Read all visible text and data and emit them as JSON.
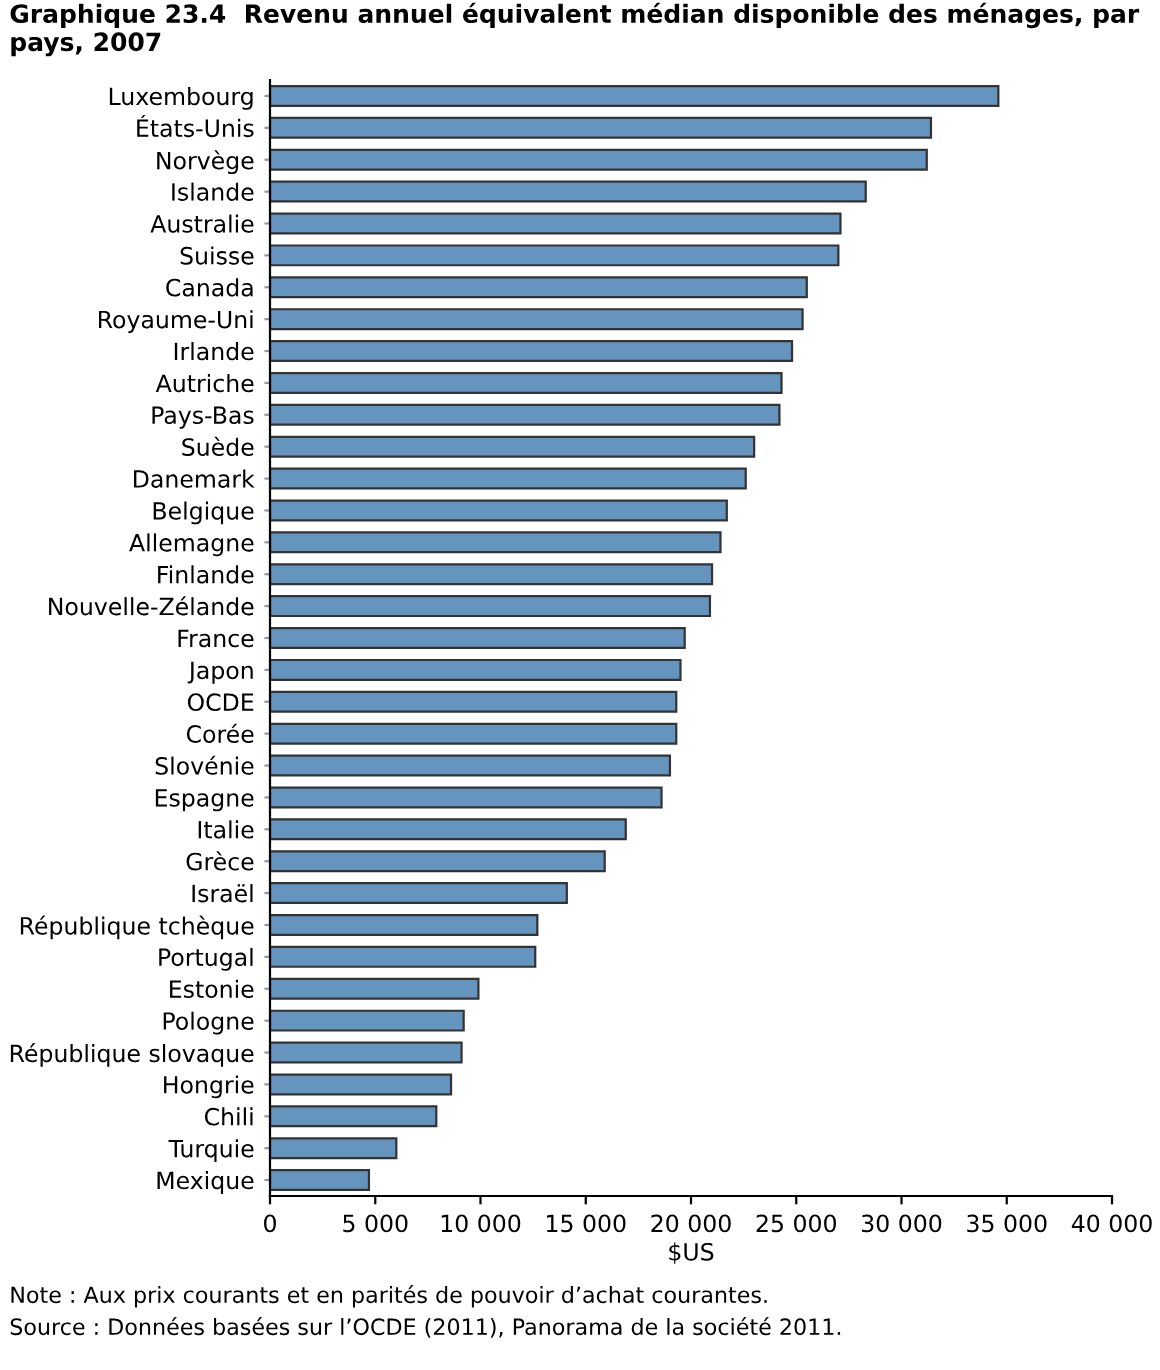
{
  "chart_data": {
    "type": "bar",
    "orientation": "horizontal",
    "title": "Graphique 23.4  Revenu annuel équivalent médian disponible des ménages, par pays, 2007",
    "xlabel": "$US",
    "categories": [
      "Luxembourg",
      "États-Unis",
      "Norvège",
      "Islande",
      "Australie",
      "Suisse",
      "Canada",
      "Royaume-Uni",
      "Irlande",
      "Autriche",
      "Pays-Bas",
      "Suède",
      "Danemark",
      "Belgique",
      "Allemagne",
      "Finlande",
      "Nouvelle-Zélande",
      "France",
      "Japon",
      "OCDE",
      "Corée",
      "Slovénie",
      "Espagne",
      "Italie",
      "Grèce",
      "Israël",
      "République tchèque",
      "Portugal",
      "Estonie",
      "Pologne",
      "République slovaque",
      "Hongrie",
      "Chili",
      "Turquie",
      "Mexique"
    ],
    "values": [
      34600,
      31400,
      31200,
      28300,
      27100,
      27000,
      25500,
      25300,
      24800,
      24300,
      24200,
      23000,
      22600,
      21700,
      21400,
      21000,
      20900,
      19700,
      19500,
      19300,
      19300,
      19000,
      18600,
      16900,
      15900,
      14100,
      12700,
      12600,
      9900,
      9200,
      9100,
      8600,
      7900,
      6000,
      4700
    ],
    "color": "#6594bf",
    "xlim": [
      0,
      40000
    ],
    "xticks": [
      0,
      {
        "value": 5000,
        "label": "5 000"
      },
      {
        "value": 10000,
        "label": "10 000"
      },
      {
        "value": 15000,
        "label": "15 000"
      },
      {
        "value": 20000,
        "label": "20 000"
      },
      {
        "value": 25000,
        "label": "25 000"
      },
      {
        "value": 30000,
        "label": "30 000"
      },
      {
        "value": 35000,
        "label": "35 000"
      },
      {
        "value": 40000,
        "label": "40 000"
      }
    ],
    "grid": false,
    "annotations": [
      "Note : Aux prix courants et en parités de pouvoir d’achat courantes.",
      "Source : Données basées sur l’OCDE (2011), Panorama de la société 2011."
    ]
  }
}
